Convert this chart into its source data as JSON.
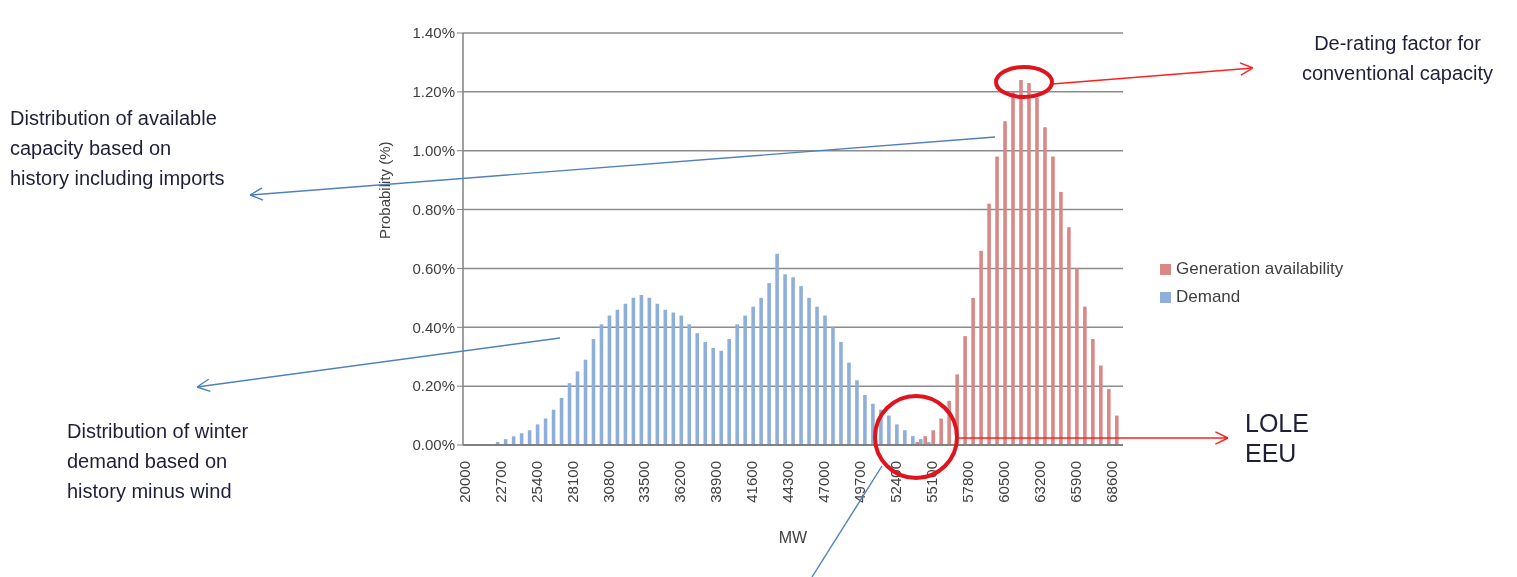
{
  "chart_data": {
    "type": "bar",
    "xlabel": "MW",
    "ylabel": "Probability (%)",
    "xlim": [
      19900,
      69500
    ],
    "xticks": [
      20000,
      22700,
      25400,
      28100,
      30800,
      33500,
      36200,
      38900,
      41600,
      44300,
      47000,
      49700,
      52400,
      55100,
      57800,
      60500,
      63200,
      65900,
      68600
    ],
    "ylim": [
      0,
      1.4
    ],
    "yticks": [
      {
        "value": 0,
        "label": "0.00%"
      },
      {
        "value": 0.2,
        "label": "0.20%"
      },
      {
        "value": 0.4,
        "label": "0.40%"
      },
      {
        "value": 0.6,
        "label": "0.60%"
      },
      {
        "value": 0.8,
        "label": "0.80%"
      },
      {
        "value": 1,
        "label": "1.00%"
      },
      {
        "value": 1.2,
        "label": "1.20%"
      },
      {
        "value": 1.4,
        "label": "1.40%"
      }
    ],
    "grid": "y",
    "legend": "right",
    "series": [
      {
        "name": "Generation availability",
        "color": "#d98886",
        "x": [
          54200,
          54800,
          55400,
          56000,
          56600,
          57200,
          57800,
          58400,
          59000,
          59600,
          60200,
          60800,
          61400,
          62000,
          62600,
          63200,
          63800,
          64400,
          65000,
          65600,
          66200,
          66800,
          67400,
          68000,
          68600,
          69200
        ],
        "values": [
          0.01,
          0.03,
          0.05,
          0.09,
          0.15,
          0.24,
          0.37,
          0.5,
          0.66,
          0.82,
          0.98,
          1.1,
          1.2,
          1.24,
          1.23,
          1.18,
          1.08,
          0.98,
          0.86,
          0.74,
          0.6,
          0.47,
          0.36,
          0.27,
          0.19,
          0.1
        ]
      },
      {
        "name": "Demand",
        "color": "#8eaedb",
        "x": [
          22400,
          23000,
          23600,
          24200,
          24800,
          25400,
          26000,
          26600,
          27200,
          27800,
          28400,
          29000,
          29600,
          30200,
          30800,
          31400,
          32000,
          32600,
          33200,
          33800,
          34400,
          35000,
          35600,
          36200,
          36800,
          37400,
          38000,
          38600,
          39200,
          39800,
          40400,
          41000,
          41600,
          42200,
          42800,
          43400,
          44000,
          44600,
          45200,
          45800,
          46400,
          47000,
          47600,
          48200,
          48800,
          49400,
          50000,
          50600,
          51200,
          51800,
          52400,
          53000,
          53600,
          54200,
          54800
        ],
        "values": [
          0.01,
          0.02,
          0.03,
          0.04,
          0.05,
          0.07,
          0.09,
          0.12,
          0.16,
          0.21,
          0.25,
          0.29,
          0.36,
          0.41,
          0.44,
          0.46,
          0.48,
          0.5,
          0.51,
          0.5,
          0.48,
          0.46,
          0.45,
          0.44,
          0.41,
          0.38,
          0.35,
          0.33,
          0.32,
          0.36,
          0.41,
          0.44,
          0.47,
          0.5,
          0.55,
          0.65,
          0.58,
          0.57,
          0.54,
          0.5,
          0.47,
          0.44,
          0.4,
          0.35,
          0.28,
          0.22,
          0.17,
          0.14,
          0.12,
          0.1,
          0.07,
          0.05,
          0.03,
          0.02,
          0.01
        ]
      }
    ],
    "annotations": [
      "Distribution of available capacity based on history including imports",
      "Distribution of winter demand based on history minus wind",
      "De-rating factor for conventional capacity",
      "LOLE EEU"
    ]
  }
}
